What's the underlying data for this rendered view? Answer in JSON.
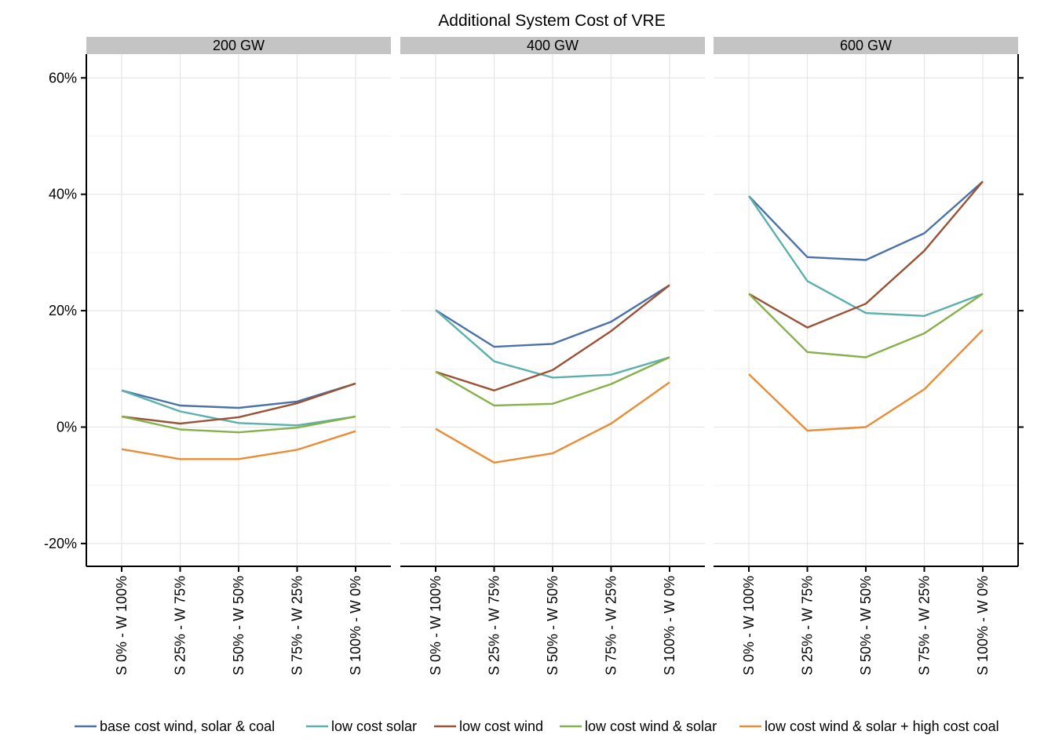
{
  "chart_data": {
    "type": "line",
    "title": "Additional System Cost of VRE",
    "categories": [
      "S 0% - W 100%",
      "S 25% - W 75%",
      "S 50% - W 50%",
      "S 75% - W 25%",
      "S 100% - W 0%"
    ],
    "y_ticks": [
      "60%",
      "40%",
      "20%",
      "0%",
      "-20%"
    ],
    "y_tick_values": [
      60,
      40,
      20,
      0,
      -20
    ],
    "ylim": [
      -24,
      64
    ],
    "grid": true,
    "legend_position": "bottom",
    "facets": [
      {
        "label": "200 GW",
        "series": [
          {
            "name": "base cost wind, solar & coal",
            "values": [
              6.3,
              3.7,
              3.3,
              4.4,
              7.5
            ]
          },
          {
            "name": "low cost solar",
            "values": [
              6.3,
              2.7,
              0.7,
              0.3,
              1.8
            ]
          },
          {
            "name": "low cost wind",
            "values": [
              1.8,
              0.6,
              1.7,
              4.1,
              7.5
            ]
          },
          {
            "name": "low cost wind & solar",
            "values": [
              1.8,
              -0.4,
              -0.9,
              -0.1,
              1.8
            ]
          },
          {
            "name": "low cost wind & solar + high cost coal",
            "values": [
              -3.8,
              -5.5,
              -5.5,
              -3.9,
              -0.7
            ]
          }
        ]
      },
      {
        "label": "400 GW",
        "series": [
          {
            "name": "base cost wind, solar & coal",
            "values": [
              20.1,
              13.8,
              14.3,
              18.1,
              24.4
            ]
          },
          {
            "name": "low cost solar",
            "values": [
              20.1,
              11.3,
              8.5,
              9.0,
              12.0
            ]
          },
          {
            "name": "low cost wind",
            "values": [
              9.5,
              6.3,
              9.8,
              16.5,
              24.4
            ]
          },
          {
            "name": "low cost wind & solar",
            "values": [
              9.5,
              3.7,
              4.0,
              7.4,
              12.0
            ]
          },
          {
            "name": "low cost wind & solar + high cost coal",
            "values": [
              -0.3,
              -6.1,
              -4.5,
              0.6,
              7.7
            ]
          }
        ]
      },
      {
        "label": "600 GW",
        "series": [
          {
            "name": "base cost wind, solar & coal",
            "values": [
              39.7,
              29.2,
              28.7,
              33.3,
              42.2
            ]
          },
          {
            "name": "low cost solar",
            "values": [
              39.7,
              25.1,
              19.6,
              19.1,
              22.9
            ]
          },
          {
            "name": "low cost wind",
            "values": [
              22.9,
              17.1,
              21.2,
              30.3,
              42.2
            ]
          },
          {
            "name": "low cost wind & solar",
            "values": [
              22.9,
              12.9,
              12.0,
              16.1,
              22.9
            ]
          },
          {
            "name": "low cost wind & solar + high cost coal",
            "values": [
              9.1,
              -0.6,
              0.0,
              6.5,
              16.7
            ]
          }
        ]
      }
    ],
    "legend": [
      {
        "name": "base cost wind, solar & coal",
        "color": "#4a72a8"
      },
      {
        "name": "low cost solar",
        "color": "#5ab0ac"
      },
      {
        "name": "low cost wind",
        "color": "#9a5236"
      },
      {
        "name": "low cost wind & solar",
        "color": "#86b04a"
      },
      {
        "name": "low cost wind & solar + high cost coal",
        "color": "#ea8c36"
      }
    ]
  }
}
